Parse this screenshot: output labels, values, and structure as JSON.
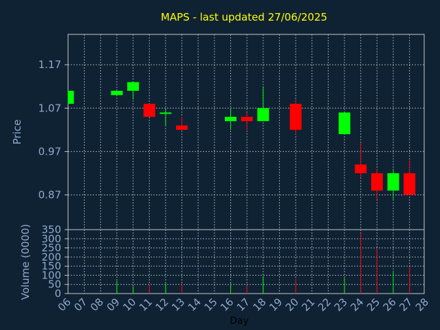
{
  "chart_data": [
    {
      "type": "candlestick",
      "title": "MAPS - last updated 27/06/2025",
      "ylabel": "Price",
      "ylim": [
        0.79,
        1.24
      ],
      "yticks": [
        "1.17",
        "1.07",
        "0.97",
        "0.87"
      ],
      "y_tick_values": [
        1.17,
        1.07,
        0.97,
        0.87
      ],
      "grid": true,
      "colors": {
        "up": "#00ff00",
        "down": "#ff0000",
        "background": "#0f2234",
        "title": "#ffff00",
        "axis_text": "#8fa9c9"
      },
      "series": [
        {
          "day": "06",
          "open": 1.08,
          "high": 1.11,
          "low": 1.08,
          "close": 1.11
        },
        {
          "day": "09",
          "open": 1.1,
          "high": 1.11,
          "low": 1.1,
          "close": 1.11
        },
        {
          "day": "10",
          "open": 1.11,
          "high": 1.13,
          "low": 1.09,
          "close": 1.13
        },
        {
          "day": "11",
          "open": 1.08,
          "high": 1.08,
          "low": 1.05,
          "close": 1.05
        },
        {
          "day": "12",
          "open": 1.06,
          "high": 1.07,
          "low": 1.03,
          "close": 1.06
        },
        {
          "day": "13",
          "open": 1.03,
          "high": 1.05,
          "low": 1.02,
          "close": 1.02
        },
        {
          "day": "16",
          "open": 1.04,
          "high": 1.07,
          "low": 1.02,
          "close": 1.05
        },
        {
          "day": "17",
          "open": 1.05,
          "high": 1.06,
          "low": 1.02,
          "close": 1.04
        },
        {
          "day": "18",
          "open": 1.04,
          "high": 1.12,
          "low": 1.04,
          "close": 1.07
        },
        {
          "day": "20",
          "open": 1.08,
          "high": 1.09,
          "low": 1.01,
          "close": 1.02
        },
        {
          "day": "23",
          "open": 1.01,
          "high": 1.06,
          "low": 1.01,
          "close": 1.06
        },
        {
          "day": "24",
          "open": 0.94,
          "high": 0.99,
          "low": 0.91,
          "close": 0.92
        },
        {
          "day": "25",
          "open": 0.92,
          "high": 0.93,
          "low": 0.86,
          "close": 0.88
        },
        {
          "day": "26",
          "open": 0.88,
          "high": 0.93,
          "low": 0.86,
          "close": 0.92
        },
        {
          "day": "27",
          "open": 0.92,
          "high": 0.95,
          "low": 0.87,
          "close": 0.87
        }
      ]
    },
    {
      "type": "bar",
      "ylabel": "Volume (0000)",
      "xlabel": "Day",
      "ylim": [
        0,
        350
      ],
      "yticks": [
        "350",
        "300",
        "250",
        "200",
        "150",
        "100",
        "50",
        "0"
      ],
      "y_tick_values": [
        350,
        300,
        250,
        200,
        150,
        100,
        50,
        0
      ],
      "categories": [
        "06",
        "07",
        "08",
        "09",
        "10",
        "11",
        "12",
        "13",
        "14",
        "15",
        "16",
        "17",
        "18",
        "19",
        "20",
        "21",
        "22",
        "23",
        "24",
        "25",
        "26",
        "27",
        "28"
      ],
      "values": [
        {
          "day": "06",
          "volume": 0,
          "direction": "up"
        },
        {
          "day": "09",
          "volume": 70,
          "direction": "up"
        },
        {
          "day": "10",
          "volume": 40,
          "direction": "up"
        },
        {
          "day": "11",
          "volume": 50,
          "direction": "down"
        },
        {
          "day": "12",
          "volume": 55,
          "direction": "up"
        },
        {
          "day": "13",
          "volume": 50,
          "direction": "down"
        },
        {
          "day": "16",
          "volume": 55,
          "direction": "up"
        },
        {
          "day": "17",
          "volume": 45,
          "direction": "down"
        },
        {
          "day": "18",
          "volume": 95,
          "direction": "up"
        },
        {
          "day": "20",
          "volume": 80,
          "direction": "down"
        },
        {
          "day": "23",
          "volume": 85,
          "direction": "up"
        },
        {
          "day": "24",
          "volume": 330,
          "direction": "down"
        },
        {
          "day": "25",
          "volume": 245,
          "direction": "down"
        },
        {
          "day": "26",
          "volume": 125,
          "direction": "up"
        },
        {
          "day": "27",
          "volume": 145,
          "direction": "down"
        }
      ],
      "grid": true
    }
  ]
}
